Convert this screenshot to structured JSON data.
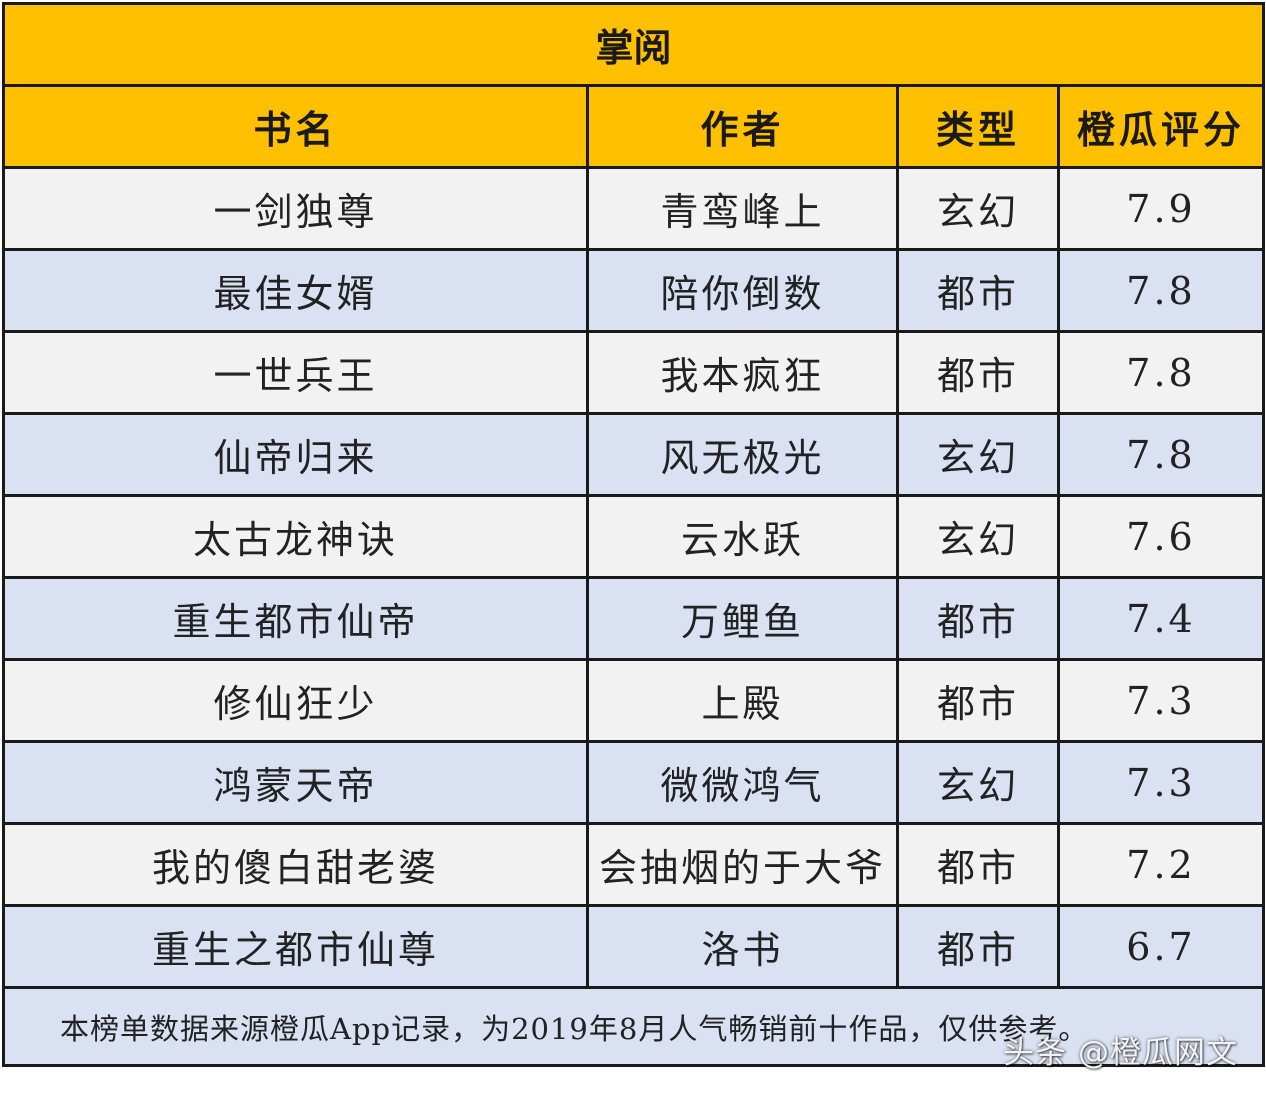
{
  "table": {
    "title": "掌阅",
    "headers": [
      "书名",
      "作者",
      "类型",
      "橙瓜评分"
    ],
    "rows": [
      {
        "book": "一剑独尊",
        "author": "青鸾峰上",
        "genre": "玄幻",
        "score": "7.9"
      },
      {
        "book": "最佳女婿",
        "author": "陪你倒数",
        "genre": "都市",
        "score": "7.8"
      },
      {
        "book": "一世兵王",
        "author": "我本疯狂",
        "genre": "都市",
        "score": "7.8"
      },
      {
        "book": "仙帝归来",
        "author": "风无极光",
        "genre": "玄幻",
        "score": "7.8"
      },
      {
        "book": "太古龙神诀",
        "author": "云水跃",
        "genre": "玄幻",
        "score": "7.6"
      },
      {
        "book": "重生都市仙帝",
        "author": "万鲤鱼",
        "genre": "都市",
        "score": "7.4"
      },
      {
        "book": "修仙狂少",
        "author": "上殿",
        "genre": "都市",
        "score": "7.3"
      },
      {
        "book": "鸿蒙天帝",
        "author": "微微鸿气",
        "genre": "玄幻",
        "score": "7.3"
      },
      {
        "book": "我的傻白甜老婆",
        "author": "会抽烟的于大爷",
        "genre": "都市",
        "score": "7.2"
      },
      {
        "book": "重生之都市仙尊",
        "author": "洛书",
        "genre": "都市",
        "score": "6.7"
      }
    ],
    "footnote": "本榜单数据来源橙瓜App记录，为2019年8月人气畅销前十作品，仅供参考。"
  },
  "watermark": "头条 @橙瓜网文",
  "colors": {
    "header_bg": "#ffc000",
    "row_light": "#f2f2f2",
    "row_blue": "#dae1f3",
    "border": "#1a1a1a"
  }
}
